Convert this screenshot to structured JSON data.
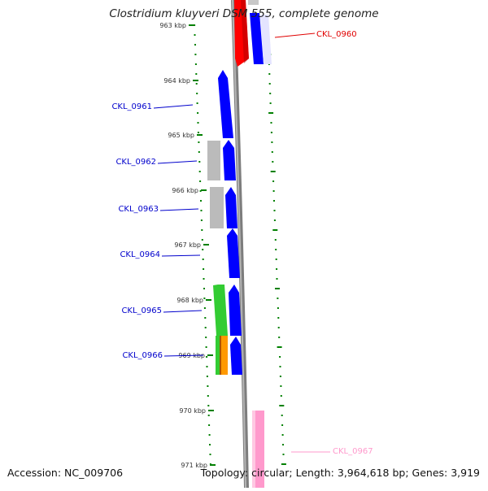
{
  "title": "Clostridium kluyveri DSM 555, complete genome",
  "footer": {
    "accession": "Accession: NC_009706",
    "summary": "Topology: circular; Length: 3,964,618 bp; Genes: 3,919"
  },
  "ruler": {
    "unit": "kbp",
    "ticks": [
      {
        "label": "963 kbp",
        "kbp": 963
      },
      {
        "label": "964 kbp",
        "kbp": 964
      },
      {
        "label": "965 kbp",
        "kbp": 965
      },
      {
        "label": "966 kbp",
        "kbp": 966
      },
      {
        "label": "967 kbp",
        "kbp": 967
      },
      {
        "label": "968 kbp",
        "kbp": 968
      },
      {
        "label": "969 kbp",
        "kbp": 969
      },
      {
        "label": "970 kbp",
        "kbp": 970
      },
      {
        "label": "971 kbp",
        "kbp": 971
      }
    ]
  },
  "genes": [
    {
      "label": "CKL_0960",
      "color": "#e00000",
      "side": "right"
    },
    {
      "label": "CKL_0961",
      "color": "#0000cc",
      "side": "left"
    },
    {
      "label": "CKL_0962",
      "color": "#0000cc",
      "side": "left"
    },
    {
      "label": "CKL_0963",
      "color": "#0000cc",
      "side": "left"
    },
    {
      "label": "CKL_0964",
      "color": "#0000cc",
      "side": "left"
    },
    {
      "label": "CKL_0965",
      "color": "#0000cc",
      "side": "left"
    },
    {
      "label": "CKL_0966",
      "color": "#0000cc",
      "side": "left"
    },
    {
      "label": "CKL_0967",
      "color": "#ff99cc",
      "side": "right"
    }
  ],
  "colors": {
    "backbone": "#888888",
    "ruler_tick": "#008000",
    "cds": "#0000ff",
    "cds_red": "#ff0000",
    "gray_feature": "#bbbbbb",
    "green_feature": "#33cc33",
    "orange_feature": "#ff9900",
    "pink_feature": "#ff99cc"
  }
}
